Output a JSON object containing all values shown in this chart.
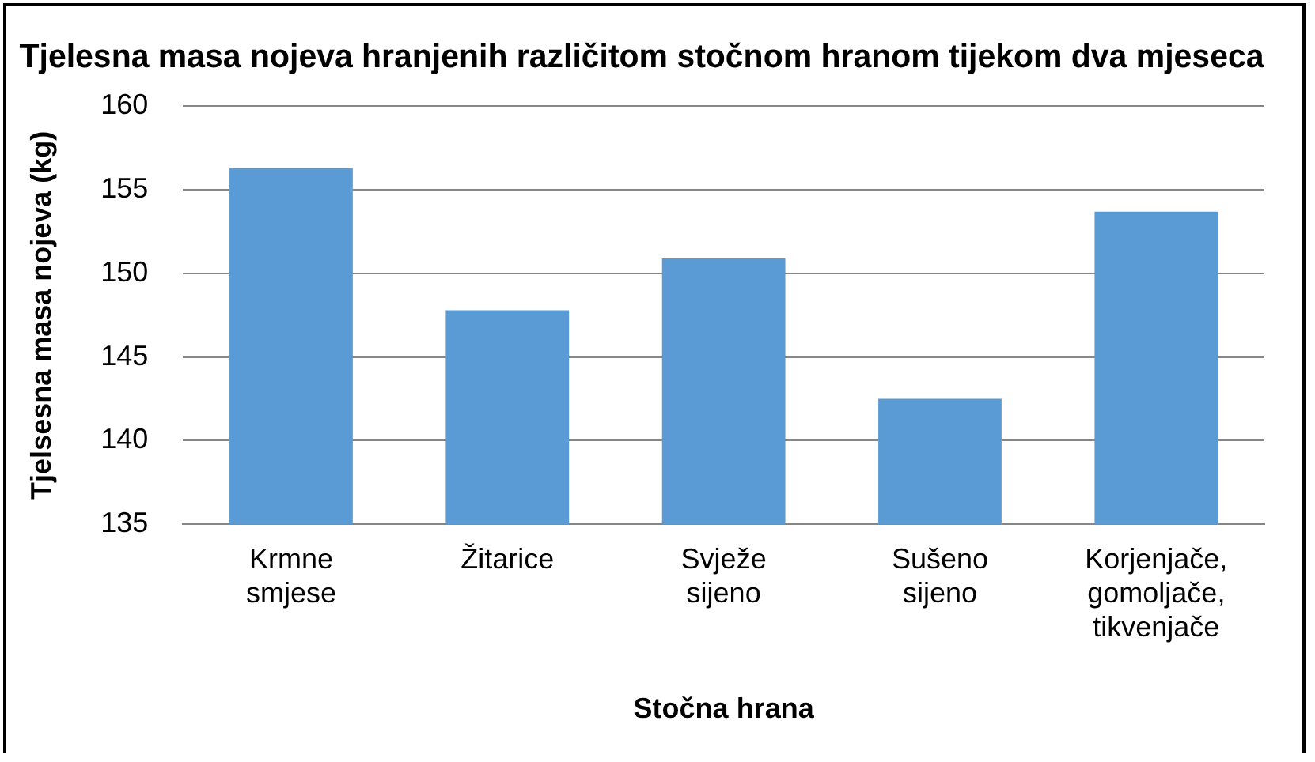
{
  "chart_data": {
    "type": "bar",
    "title": "Tjelesna masa nojeva hranjenih različitom stočnom hranom tijekom dva mjeseca",
    "xlabel": "Stočna hrana",
    "ylabel": "Tjelsesna masa nojeva (kg)",
    "categories": [
      "Krmne smjese",
      "Žitarice",
      "Svježe sijeno",
      "Sušeno sijeno",
      "Korjenjače, gomoljače, tikvenjače"
    ],
    "values": [
      156.3,
      147.8,
      150.9,
      142.5,
      153.7
    ],
    "color": "#5b9bd5",
    "ylim": [
      135,
      160
    ],
    "yticks": [
      135,
      140,
      145,
      150,
      155,
      160
    ],
    "grid": "y",
    "legend": false
  }
}
